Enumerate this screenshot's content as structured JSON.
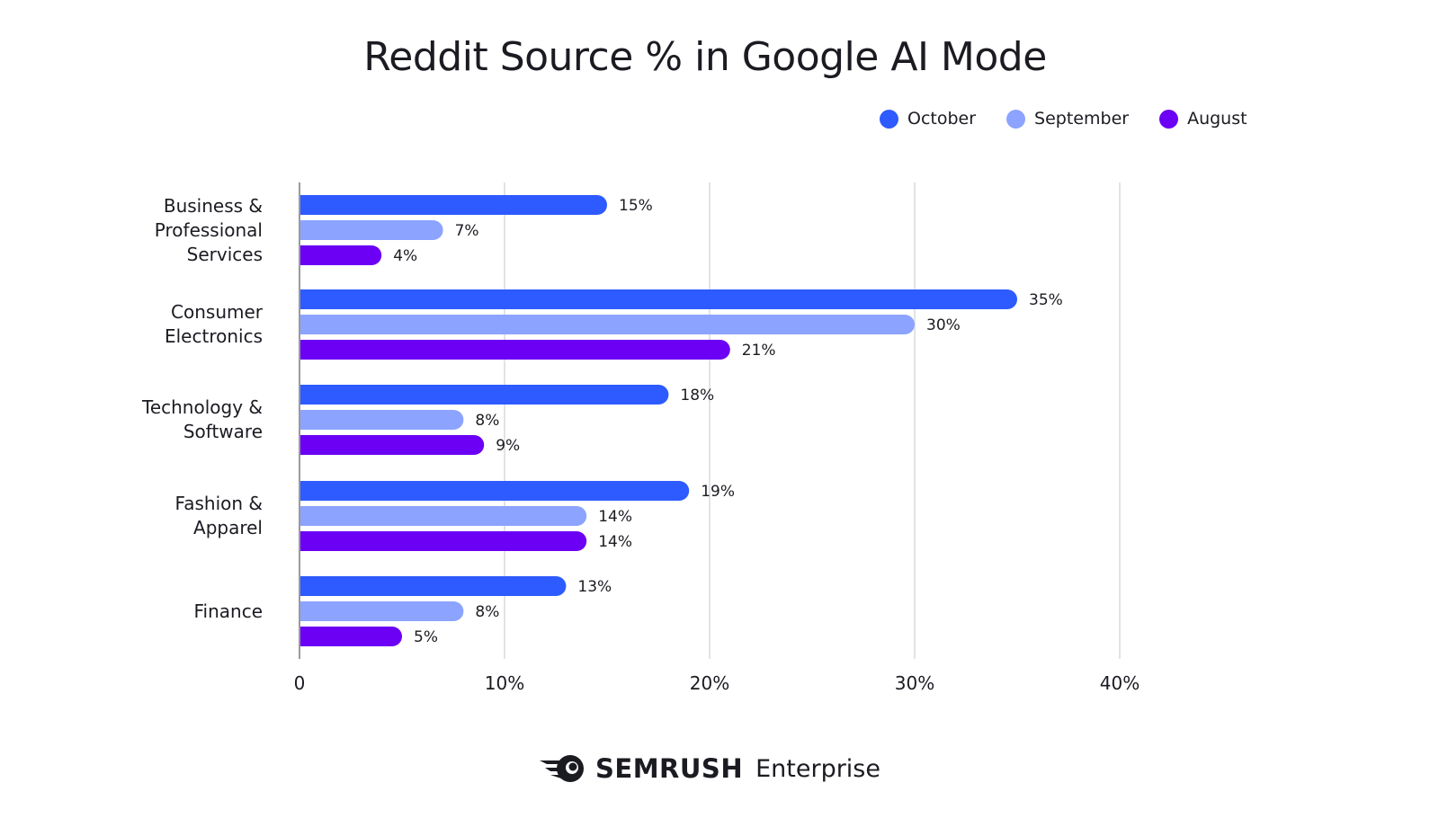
{
  "chart_data": {
    "type": "bar",
    "orientation": "horizontal",
    "title": "Reddit Source % in Google AI Mode",
    "categories": [
      "Business &\nProfessional\nServices",
      "Consumer\nElectronics",
      "Technology &\nSoftware",
      "Fashion  &\nApparel",
      "Finance"
    ],
    "series": [
      {
        "name": "October",
        "color": "#2e5bff",
        "values": [
          15,
          35,
          18,
          19,
          13
        ]
      },
      {
        "name": "September",
        "color": "#8ca4ff",
        "values": [
          7,
          30,
          8,
          14,
          8
        ]
      },
      {
        "name": "August",
        "color": "#6b00f5",
        "values": [
          4,
          21,
          9,
          14,
          5
        ]
      }
    ],
    "xlim": [
      0,
      40
    ],
    "x_ticks": [
      "0",
      "10%",
      "20%",
      "30%",
      "40%"
    ],
    "grid": true,
    "legend_position": "top-right",
    "value_suffix": "%"
  },
  "footer": {
    "brand": "SEMRUSH",
    "product": "Enterprise"
  }
}
